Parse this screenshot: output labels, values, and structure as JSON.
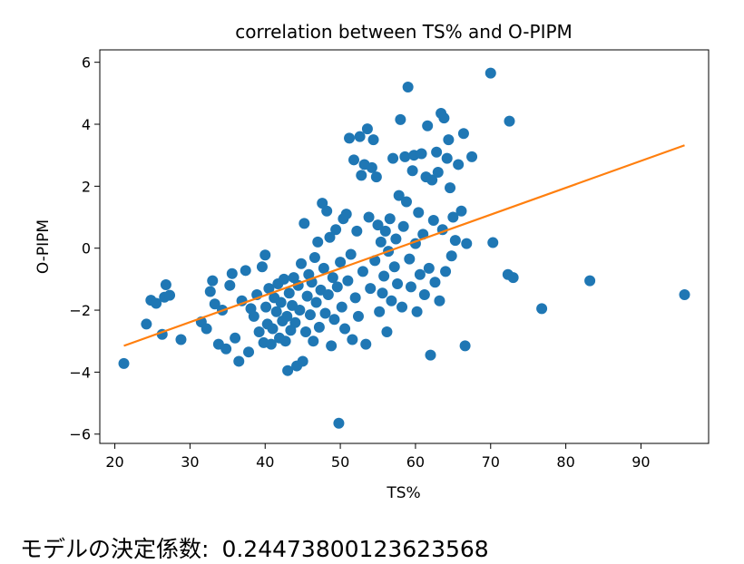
{
  "chart_data": {
    "type": "scatter",
    "title": "correlation between TS% and O-PIPM",
    "xlabel": "TS%",
    "ylabel": "O-PIPM",
    "xlim": [
      18,
      99
    ],
    "ylim": [
      -6.3,
      6.4
    ],
    "xticks": [
      20,
      30,
      40,
      50,
      60,
      70,
      80,
      90
    ],
    "yticks": [
      -6,
      -4,
      -2,
      0,
      2,
      4,
      6
    ],
    "grid": false,
    "colors": {
      "points": "#1f77b4",
      "fit_line": "#ff7f0e"
    },
    "fit_line": {
      "x": [
        21.2,
        95.8
      ],
      "y": [
        -3.15,
        3.32
      ]
    },
    "points": [
      [
        21.2,
        -3.72
      ],
      [
        24.2,
        -2.45
      ],
      [
        24.8,
        -1.68
      ],
      [
        25.5,
        -1.78
      ],
      [
        26.3,
        -2.78
      ],
      [
        26.6,
        -1.58
      ],
      [
        26.8,
        -1.18
      ],
      [
        27.3,
        -1.52
      ],
      [
        28.8,
        -2.95
      ],
      [
        31.5,
        -2.38
      ],
      [
        32.2,
        -2.6
      ],
      [
        32.7,
        -1.4
      ],
      [
        33.0,
        -1.05
      ],
      [
        33.3,
        -1.8
      ],
      [
        33.8,
        -3.1
      ],
      [
        34.3,
        -2.0
      ],
      [
        34.8,
        -3.25
      ],
      [
        35.3,
        -1.2
      ],
      [
        35.6,
        -0.82
      ],
      [
        36.0,
        -2.9
      ],
      [
        36.5,
        -3.65
      ],
      [
        36.9,
        -1.7
      ],
      [
        37.4,
        -0.72
      ],
      [
        37.8,
        -3.35
      ],
      [
        38.1,
        -1.95
      ],
      [
        38.5,
        -2.2
      ],
      [
        38.9,
        -1.5
      ],
      [
        39.2,
        -2.7
      ],
      [
        39.6,
        -0.6
      ],
      [
        39.8,
        -3.05
      ],
      [
        40.0,
        -0.22
      ],
      [
        40.1,
        -1.9
      ],
      [
        40.3,
        -2.45
      ],
      [
        40.5,
        -1.3
      ],
      [
        40.8,
        -3.1
      ],
      [
        41.0,
        -2.6
      ],
      [
        41.2,
        -1.6
      ],
      [
        41.5,
        -2.05
      ],
      [
        41.7,
        -1.15
      ],
      [
        41.9,
        -2.9
      ],
      [
        42.1,
        -1.75
      ],
      [
        42.3,
        -2.35
      ],
      [
        42.5,
        -1.0
      ],
      [
        42.7,
        -3.0
      ],
      [
        42.9,
        -2.2
      ],
      [
        43.0,
        -3.95
      ],
      [
        43.2,
        -1.45
      ],
      [
        43.4,
        -2.65
      ],
      [
        43.6,
        -1.85
      ],
      [
        43.8,
        -0.95
      ],
      [
        44.0,
        -2.4
      ],
      [
        44.2,
        -3.8
      ],
      [
        44.4,
        -1.2
      ],
      [
        44.6,
        -2.0
      ],
      [
        44.8,
        -0.5
      ],
      [
        45.0,
        -3.65
      ],
      [
        45.2,
        0.8
      ],
      [
        45.4,
        -2.7
      ],
      [
        45.6,
        -1.55
      ],
      [
        45.8,
        -0.85
      ],
      [
        46.0,
        -2.15
      ],
      [
        46.2,
        -1.1
      ],
      [
        46.4,
        -3.0
      ],
      [
        46.6,
        -0.3
      ],
      [
        46.8,
        -1.75
      ],
      [
        47.0,
        0.2
      ],
      [
        47.2,
        -2.55
      ],
      [
        47.4,
        -1.35
      ],
      [
        47.6,
        1.45
      ],
      [
        47.8,
        -0.65
      ],
      [
        48.0,
        -2.1
      ],
      [
        48.2,
        1.2
      ],
      [
        48.4,
        -1.5
      ],
      [
        48.6,
        0.35
      ],
      [
        48.8,
        -3.15
      ],
      [
        49.0,
        -0.95
      ],
      [
        49.2,
        -2.3
      ],
      [
        49.4,
        0.6
      ],
      [
        49.6,
        -1.25
      ],
      [
        49.8,
        -5.65
      ],
      [
        50.0,
        -0.45
      ],
      [
        50.2,
        -1.9
      ],
      [
        50.4,
        0.95
      ],
      [
        50.6,
        -2.6
      ],
      [
        50.8,
        1.1
      ],
      [
        51.0,
        -1.05
      ],
      [
        51.2,
        3.55
      ],
      [
        51.4,
        -0.2
      ],
      [
        51.6,
        -2.95
      ],
      [
        51.8,
        2.85
      ],
      [
        52.0,
        -1.6
      ],
      [
        52.2,
        0.55
      ],
      [
        52.4,
        -2.2
      ],
      [
        52.6,
        3.6
      ],
      [
        52.8,
        2.35
      ],
      [
        53.0,
        -0.75
      ],
      [
        53.2,
        2.7
      ],
      [
        53.4,
        -3.1
      ],
      [
        53.6,
        3.85
      ],
      [
        53.8,
        1.0
      ],
      [
        54.0,
        -1.3
      ],
      [
        54.2,
        2.6
      ],
      [
        54.4,
        3.5
      ],
      [
        54.6,
        -0.4
      ],
      [
        54.8,
        2.3
      ],
      [
        55.0,
        0.75
      ],
      [
        55.2,
        -2.05
      ],
      [
        55.4,
        0.2
      ],
      [
        55.6,
        -1.45
      ],
      [
        55.8,
        -0.9
      ],
      [
        56.0,
        0.55
      ],
      [
        56.2,
        -2.7
      ],
      [
        56.4,
        -0.1
      ],
      [
        56.6,
        0.95
      ],
      [
        56.8,
        -1.7
      ],
      [
        57.0,
        2.9
      ],
      [
        57.2,
        -0.6
      ],
      [
        57.4,
        0.3
      ],
      [
        57.6,
        -1.15
      ],
      [
        57.8,
        1.7
      ],
      [
        58.0,
        4.15
      ],
      [
        58.2,
        -1.9
      ],
      [
        58.4,
        0.7
      ],
      [
        58.6,
        2.95
      ],
      [
        58.8,
        1.5
      ],
      [
        59.0,
        5.2
      ],
      [
        59.2,
        -0.35
      ],
      [
        59.4,
        -1.25
      ],
      [
        59.6,
        2.5
      ],
      [
        59.8,
        3.0
      ],
      [
        60.0,
        0.15
      ],
      [
        60.2,
        -2.05
      ],
      [
        60.4,
        1.15
      ],
      [
        60.6,
        -0.85
      ],
      [
        60.8,
        3.05
      ],
      [
        61.0,
        0.45
      ],
      [
        61.2,
        -1.5
      ],
      [
        61.4,
        2.3
      ],
      [
        61.6,
        3.95
      ],
      [
        61.8,
        -0.65
      ],
      [
        62.0,
        -3.45
      ],
      [
        62.2,
        2.2
      ],
      [
        62.4,
        0.9
      ],
      [
        62.6,
        -1.1
      ],
      [
        62.8,
        3.1
      ],
      [
        63.0,
        2.45
      ],
      [
        63.2,
        -1.7
      ],
      [
        63.4,
        4.35
      ],
      [
        63.6,
        0.6
      ],
      [
        63.8,
        4.2
      ],
      [
        64.0,
        -0.75
      ],
      [
        64.2,
        2.9
      ],
      [
        64.4,
        3.5
      ],
      [
        64.6,
        1.95
      ],
      [
        64.8,
        -0.25
      ],
      [
        65.0,
        1.0
      ],
      [
        65.3,
        0.25
      ],
      [
        65.7,
        2.7
      ],
      [
        66.1,
        1.2
      ],
      [
        66.4,
        3.7
      ],
      [
        66.6,
        -3.15
      ],
      [
        66.8,
        0.15
      ],
      [
        67.5,
        2.95
      ],
      [
        70.0,
        5.65
      ],
      [
        70.3,
        0.18
      ],
      [
        72.3,
        -0.85
      ],
      [
        72.5,
        4.1
      ],
      [
        73.0,
        -0.95
      ],
      [
        76.8,
        -1.95
      ],
      [
        83.2,
        -1.05
      ],
      [
        95.8,
        -1.5
      ]
    ]
  },
  "caption": {
    "label": "モデルの決定係数:",
    "value": "0.24473800123623568"
  }
}
